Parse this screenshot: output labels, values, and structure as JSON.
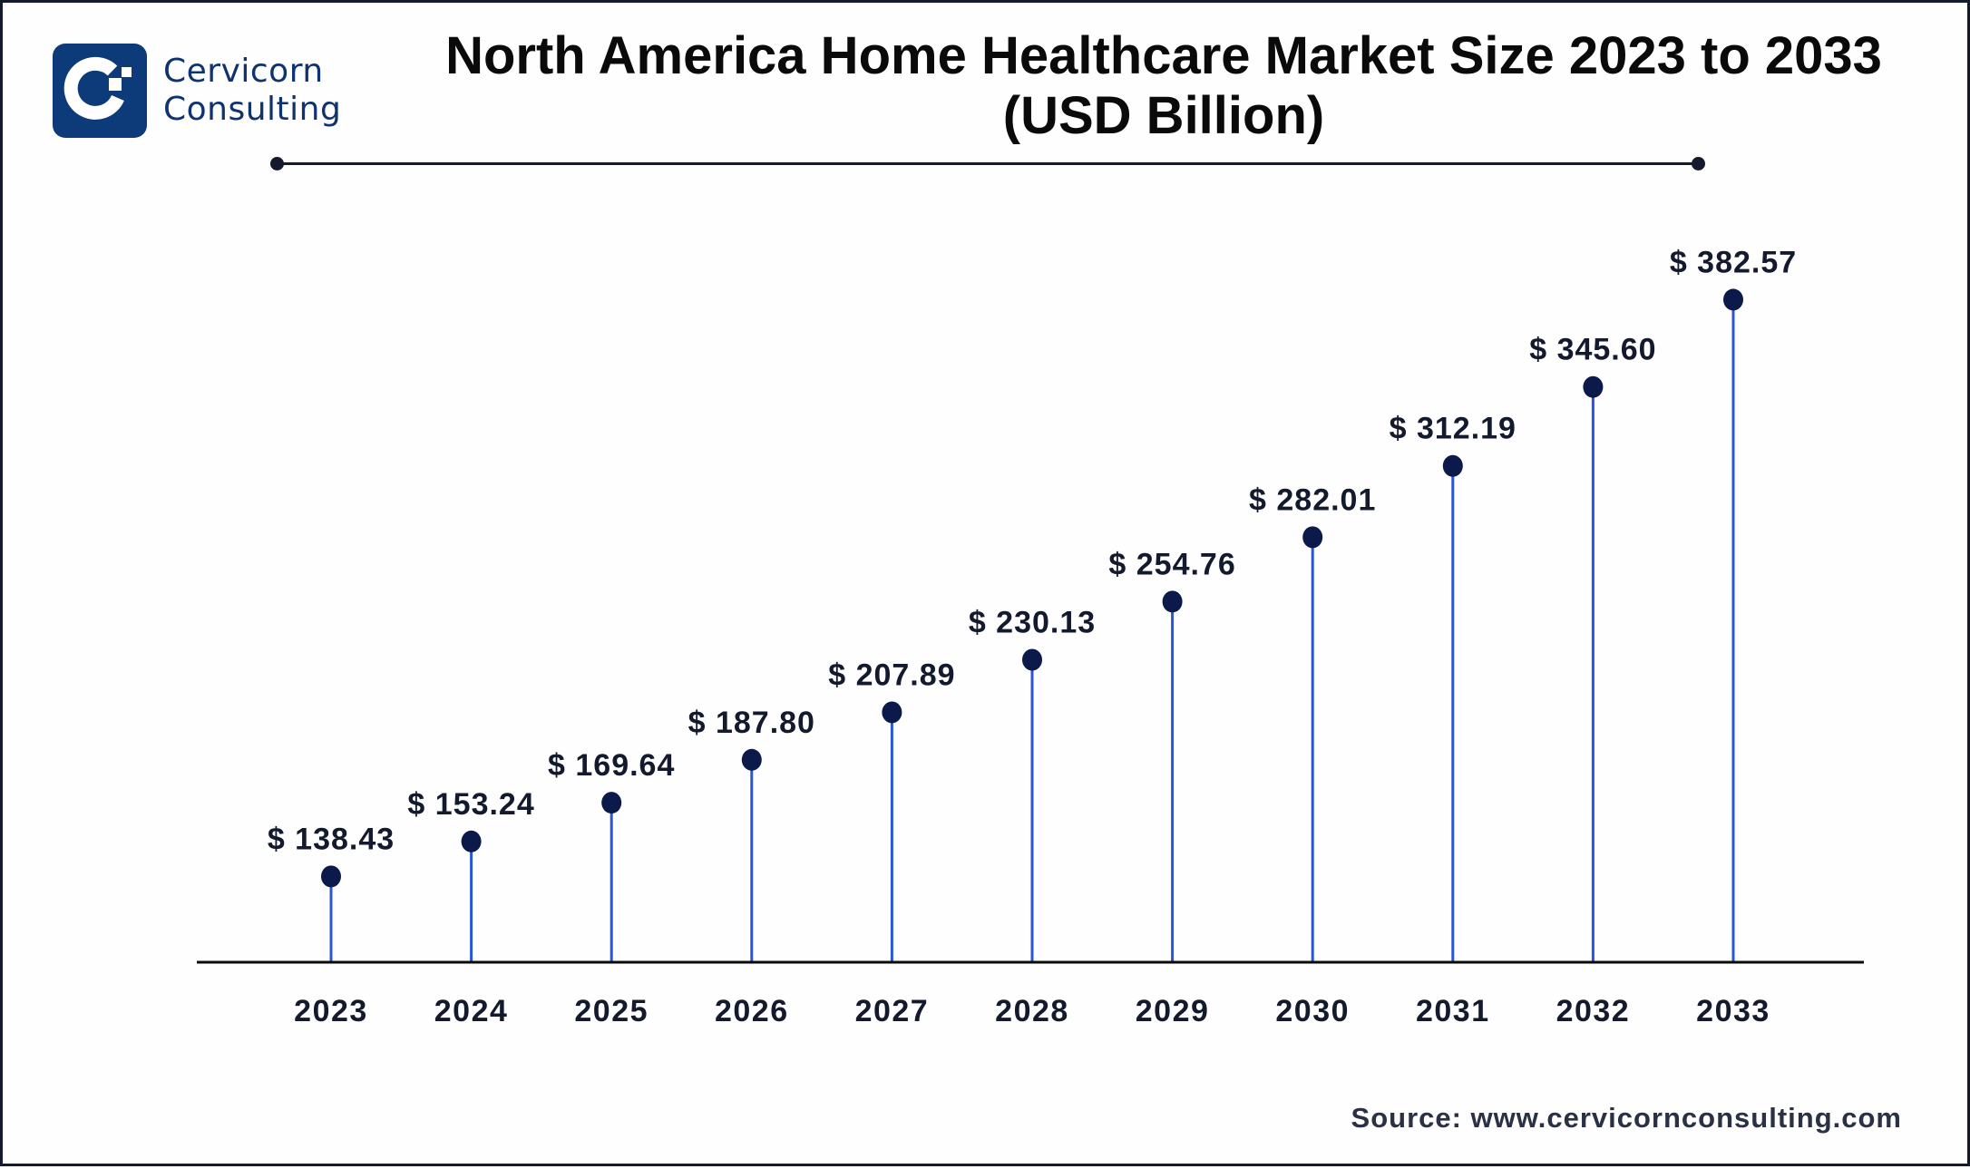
{
  "brand": {
    "name_line1": "Cervicorn",
    "name_line2": "Consulting",
    "logo_icon": "cervicorn-c-logo-icon",
    "colors": {
      "logo_bg": "#0d3a78",
      "logo_text": "#0f3270"
    }
  },
  "source": "Source: www.cervicornconsulting.com",
  "colors": {
    "stem": "#2a55d6",
    "dot": "#0b1a4a",
    "axis": "#0a0a0a",
    "label": "#141a2e"
  },
  "chart_data": {
    "type": "lollipop",
    "title": "North America Home Healthcare Market Size 2023 to 2033",
    "subtitle": "(USD Billion)",
    "xlabel": "",
    "ylabel": "",
    "categories": [
      "2023",
      "2024",
      "2025",
      "2026",
      "2027",
      "2028",
      "2029",
      "2030",
      "2031",
      "2032",
      "2033"
    ],
    "values": [
      138.43,
      153.24,
      169.64,
      187.8,
      207.89,
      230.13,
      254.76,
      282.01,
      312.19,
      345.6,
      382.57
    ],
    "data_labels": [
      "$ 138.43",
      "$ 153.24",
      "$ 169.64",
      "$ 187.80",
      "$ 207.89",
      "$ 230.13",
      "$ 254.76",
      "$ 282.01",
      "$ 312.19",
      "$ 345.60",
      "$ 382.57"
    ],
    "unit": "USD Billion",
    "ylim": [
      0,
      400
    ],
    "grid": false,
    "legend": "none",
    "y_axis_visible": false
  }
}
